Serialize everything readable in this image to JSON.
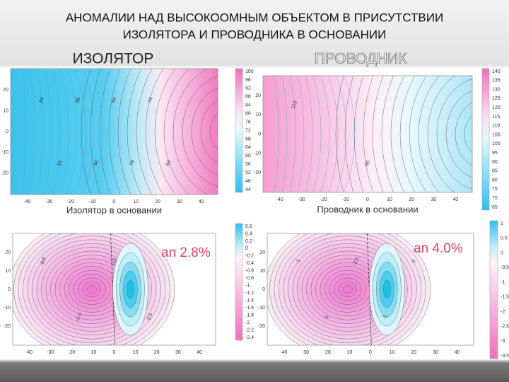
{
  "title": [
    "АНОМАЛИИ  НАД ВЫСОКООМНЫМ  ОБЪЕКТОМ В ПРИСУТСТВИИ",
    "ИЗОЛЯТОРА  И   ПРОВОДНИКА  В ОСНОВАНИИ"
  ],
  "columns": [
    "ИЗОЛЯТОР",
    "ПРОВОДНИК"
  ],
  "panels": [
    {
      "caption": "Изолятор в основании",
      "x_ticks": [
        "-40",
        "-30",
        "-20",
        "-10",
        "0",
        "10",
        "20",
        "30",
        "40"
      ],
      "y_ticks": [
        "20",
        "10",
        "0",
        "-10",
        "-20"
      ],
      "colorbar": [
        "100",
        "96",
        "92",
        "88",
        "84",
        "80",
        "76",
        "72",
        "68",
        "64",
        "60",
        "56",
        "52",
        "48",
        "44"
      ],
      "contour_labels": [
        "84",
        "81",
        "86",
        "84",
        "84",
        "79",
        "74",
        "84"
      ]
    },
    {
      "caption": "Проводник в основании",
      "x_ticks": [
        "-40",
        "-30",
        "-20",
        "-10",
        "0",
        "10",
        "20",
        "30",
        "40"
      ],
      "y_ticks": [
        "20",
        "10",
        "0",
        "-10",
        "-20"
      ],
      "colorbar": [
        "140",
        "135",
        "130",
        "125",
        "120",
        "115",
        "110",
        "105",
        "100",
        "95",
        "90",
        "85",
        "80",
        "75",
        "70",
        "65"
      ],
      "contour_labels": [
        "110",
        "85"
      ]
    },
    {
      "annotation": "an 2.8%",
      "x_ticks": [
        "-40",
        "-30",
        "-20",
        "-10",
        "0",
        "10",
        "20",
        "30",
        "40"
      ],
      "y_ticks": [
        "20",
        "10",
        "0",
        "-10",
        "-20"
      ],
      "colorbar": [
        "0.6",
        "0.4",
        "0.2",
        "0",
        "-0.2",
        "-0.4",
        "-0.6",
        "-0.8",
        "-1",
        "-1.2",
        "-1.4",
        "-1.6",
        "-1.8",
        "-2",
        "-2.2",
        "-2.4"
      ],
      "contour_labels": [
        "-0.8",
        "-1.4",
        "0.2",
        "-0.6"
      ]
    },
    {
      "annotation": "an 4.0%",
      "x_ticks": [
        "-40",
        "-30",
        "-20",
        "-10",
        "0",
        "10",
        "20",
        "30",
        "40"
      ],
      "y_ticks": [
        "20",
        "10",
        "0",
        "-10",
        "-20"
      ],
      "colorbar": [
        "1",
        "0.5",
        "0",
        "-0.5",
        "-1",
        "-1.5",
        "-2",
        "-2.5",
        "-3",
        "-3.5"
      ],
      "contour_labels": [
        "-1",
        "0",
        "-2.5",
        "-1",
        "0"
      ]
    }
  ]
}
